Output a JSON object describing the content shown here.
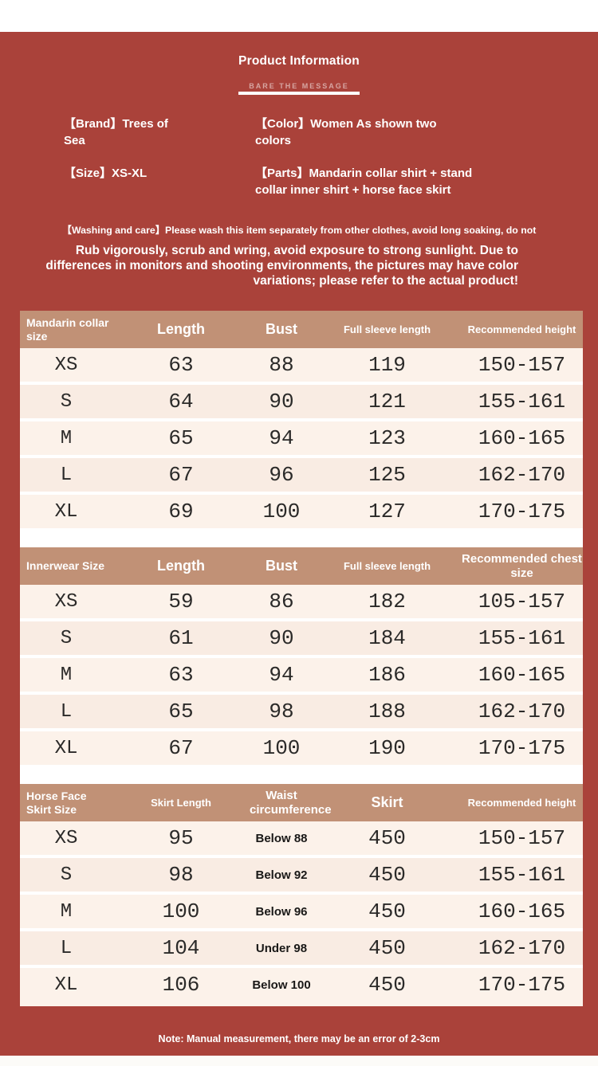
{
  "header": {
    "title": "Product Information",
    "tagline": "BARE  THE MESSAGE",
    "info": {
      "brand": "【Brand】Trees of Sea",
      "color": "【Color】Women As shown two colors",
      "size": "【Size】XS-XL",
      "parts": "【Parts】Mandarin collar shirt + stand collar inner shirt + horse face skirt"
    },
    "care_line": "【Washing and care】Please wash this item separately from other clothes, avoid long soaking, do not",
    "care_paragraph": "Rub vigorously, scrub and wring, avoid exposure to strong sunlight. Due to differences in monitors and shooting environments, the pictures may have color variations; please refer to the actual product!"
  },
  "tables": [
    {
      "name": "mandarin-collar-size-table",
      "headers": [
        "Mandarin collar size",
        "Length",
        "Bust",
        "Full sleeve length",
        "Recommended height"
      ],
      "rows": [
        [
          "XS",
          "63",
          "88",
          "119",
          "150-157"
        ],
        [
          "S",
          "64",
          "90",
          "121",
          "155-161"
        ],
        [
          "M",
          "65",
          "94",
          "123",
          "160-165"
        ],
        [
          "L",
          "67",
          "96",
          "125",
          "162-170"
        ],
        [
          "XL",
          "69",
          "100",
          "127",
          "170-175"
        ]
      ]
    },
    {
      "name": "innerwear-size-table",
      "headers": [
        "Innerwear Size",
        "Length",
        "Bust",
        "Full sleeve length",
        "Recommended chest size"
      ],
      "rows": [
        [
          "XS",
          "59",
          "86",
          "182",
          "105-157"
        ],
        [
          "S",
          "61",
          "90",
          "184",
          "155-161"
        ],
        [
          "M",
          "63",
          "94",
          "186",
          "160-165"
        ],
        [
          "L",
          "65",
          "98",
          "188",
          "162-170"
        ],
        [
          "XL",
          "67",
          "100",
          "190",
          "170-175"
        ]
      ]
    },
    {
      "name": "horse-face-skirt-size-table",
      "headers": [
        "Horse Face Skirt Size",
        "Skirt Length",
        "Waist circumference",
        "Skirt",
        "Recommended height"
      ],
      "rows": [
        [
          "XS",
          "95",
          "Below 88",
          "450",
          "150-157"
        ],
        [
          "S",
          "98",
          "Below 92",
          "450",
          "155-161"
        ],
        [
          "M",
          "100",
          "Below 96",
          "450",
          "160-165"
        ],
        [
          "L",
          "104",
          "Under 98",
          "450",
          "162-170"
        ],
        [
          "XL",
          "106",
          "Below 100",
          "450",
          "170-175"
        ]
      ]
    }
  ],
  "footer": {
    "note": "Note: Manual measurement, there may be an error of 2-3cm"
  },
  "colors": {
    "background_red": "#aa423a",
    "table_header_tan": "#c19176",
    "row_cream": "#fcf2ea",
    "row_cream_alt": "#f9ece3",
    "text_white": "#ffffff",
    "table_text_dark": "#2b2a29"
  }
}
